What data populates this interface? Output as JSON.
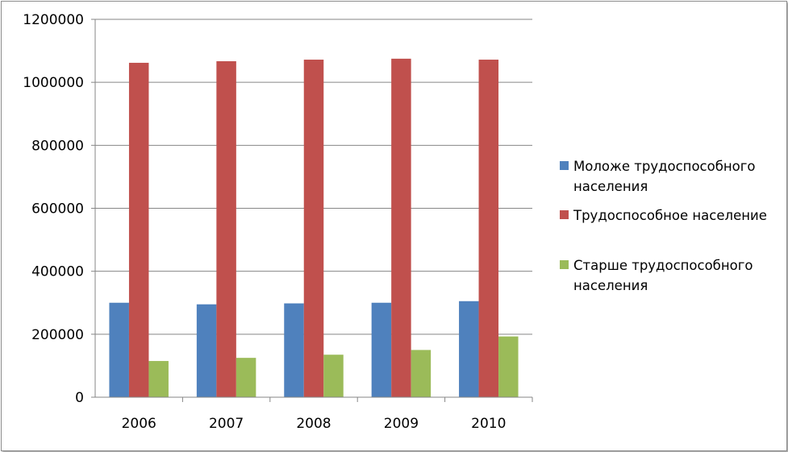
{
  "chart_data": {
    "type": "bar",
    "categories": [
      "2006",
      "2007",
      "2008",
      "2009",
      "2010"
    ],
    "series": [
      {
        "name": "Моложе трудоспособного населения",
        "name_lines": [
          "Моложе трудоспособного",
          "населения"
        ],
        "color": "#4f81bd",
        "values": [
          300000,
          295000,
          298000,
          300000,
          305000
        ]
      },
      {
        "name": "Трудоспособное население",
        "name_lines": [
          "Трудоспособное население"
        ],
        "color": "#c0504d",
        "values": [
          1062000,
          1067000,
          1072000,
          1075000,
          1072000
        ]
      },
      {
        "name": "Старше трудоспособного населения",
        "name_lines": [
          "Старше трудоспособного",
          "населения"
        ],
        "color": "#9bbb59",
        "values": [
          115000,
          125000,
          135000,
          150000,
          193000
        ]
      }
    ],
    "y_ticks": [
      "0",
      "200000",
      "400000",
      "600000",
      "800000",
      "1000000",
      "1200000"
    ],
    "ylim": [
      0,
      1200000
    ],
    "grid": true,
    "legend_position": "right"
  }
}
